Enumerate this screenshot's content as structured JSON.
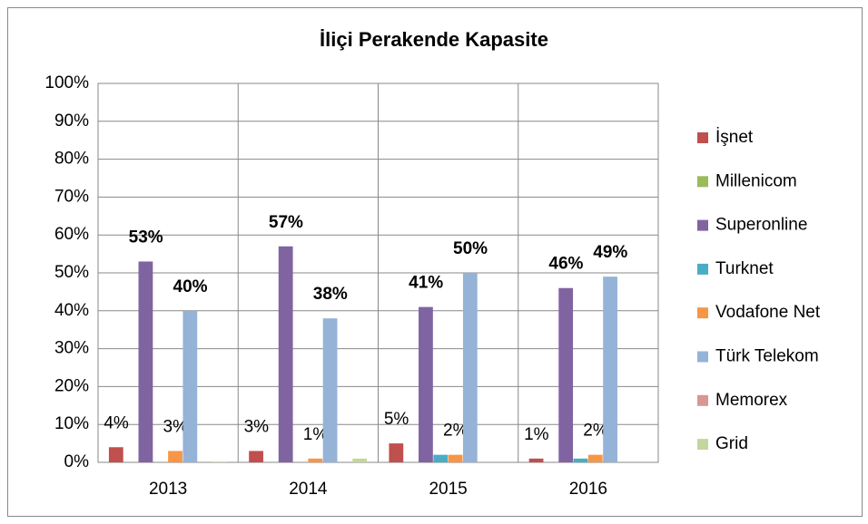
{
  "chart_data": {
    "type": "bar",
    "title": "İliçi Perakende Kapasite",
    "categories": [
      "2013",
      "2014",
      "2015",
      "2016"
    ],
    "series": [
      {
        "name": "İşnet",
        "color": "#c0504d",
        "values": [
          4,
          3,
          5,
          1
        ],
        "value_labels": [
          "4%",
          "3%",
          "5%",
          "1%"
        ],
        "bold_labels": false
      },
      {
        "name": "Millenicom",
        "color": "#9bbb59",
        "values": [
          0,
          0,
          0,
          0
        ],
        "value_labels": [
          null,
          null,
          null,
          null
        ],
        "bold_labels": false
      },
      {
        "name": "Superonline",
        "color": "#8064a2",
        "values": [
          53,
          57,
          41,
          46
        ],
        "value_labels": [
          "53%",
          "57%",
          "41%",
          "46%"
        ],
        "bold_labels": true
      },
      {
        "name": "Turknet",
        "color": "#4bacc6",
        "values": [
          0,
          0,
          2,
          1
        ],
        "value_labels": [
          null,
          null,
          null,
          null
        ],
        "bold_labels": false
      },
      {
        "name": "Vodafone Net",
        "color": "#f79646",
        "values": [
          3,
          1,
          2,
          2
        ],
        "value_labels": [
          "3%",
          "1%",
          "2%",
          "2%"
        ],
        "bold_labels": false
      },
      {
        "name": "Türk Telekom",
        "color": "#95b3d7",
        "values": [
          40,
          38,
          50,
          49
        ],
        "value_labels": [
          "40%",
          "38%",
          "50%",
          "49%"
        ],
        "bold_labels": true
      },
      {
        "name": "Memorex",
        "color": "#d99694",
        "values": [
          0,
          0,
          0,
          0
        ],
        "value_labels": [
          null,
          null,
          null,
          null
        ],
        "bold_labels": false
      },
      {
        "name": "Grid",
        "color": "#c3d69b",
        "values": [
          0.2,
          1,
          0,
          0
        ],
        "value_labels": [
          null,
          null,
          null,
          null
        ],
        "bold_labels": false
      }
    ],
    "ylim": [
      0,
      100
    ],
    "yticks": [
      {
        "value": 0,
        "label": "0%"
      },
      {
        "value": 10,
        "label": "10%"
      },
      {
        "value": 20,
        "label": "20%"
      },
      {
        "value": 30,
        "label": "30%"
      },
      {
        "value": 40,
        "label": "40%"
      },
      {
        "value": 50,
        "label": "50%"
      },
      {
        "value": 60,
        "label": "60%"
      },
      {
        "value": 70,
        "label": "70%"
      },
      {
        "value": 80,
        "label": "80%"
      },
      {
        "value": 90,
        "label": "90%"
      },
      {
        "value": 100,
        "label": "100%"
      }
    ],
    "grid": true,
    "xgrid": true,
    "legend": "right"
  }
}
